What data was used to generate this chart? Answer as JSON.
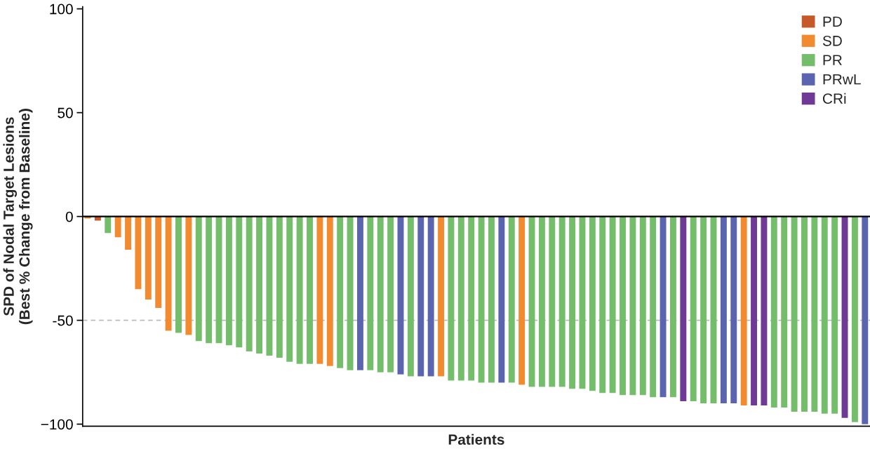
{
  "chart_data": {
    "type": "bar",
    "xlabel": "Patients",
    "ylabel": "SPD of Nodal Target Lesions\n(Best % Change from Baseline)",
    "categories": [
      null,
      null,
      null,
      null,
      null,
      null,
      null,
      null,
      null,
      null,
      null,
      null,
      null,
      null,
      null,
      null,
      null,
      null,
      null,
      null,
      null,
      null,
      null,
      null,
      null,
      null,
      null,
      null,
      null,
      null,
      null,
      null,
      null,
      null,
      null,
      null,
      null,
      null,
      null,
      null,
      null,
      null,
      null,
      null,
      null,
      null,
      null,
      null,
      null,
      null,
      null,
      null,
      null,
      null,
      null,
      null,
      null,
      null,
      null,
      null,
      null,
      null,
      null,
      null,
      null,
      null,
      null,
      null,
      null,
      null,
      null,
      null,
      null,
      null,
      null,
      null,
      null,
      null
    ],
    "series": [
      {
        "name": "PD",
        "color": "#c55a28",
        "values": [
          null,
          -2,
          null,
          null,
          null,
          null,
          null,
          null,
          null,
          null,
          null,
          null,
          null,
          null,
          null,
          null,
          null,
          null,
          null,
          null,
          null,
          null,
          null,
          null,
          null,
          null,
          null,
          null,
          null,
          null,
          null,
          null,
          null,
          null,
          null,
          null,
          null,
          null,
          null,
          null,
          null,
          null,
          null,
          null,
          null,
          null,
          null,
          null,
          null,
          null,
          null,
          null,
          null,
          null,
          null,
          null,
          null,
          null,
          null,
          null,
          null,
          null,
          null,
          null,
          null,
          null,
          null,
          null,
          null,
          null,
          null,
          null,
          null,
          null,
          null,
          null,
          null,
          null
        ]
      },
      {
        "name": "SD",
        "color": "#f28b30",
        "values": [
          -1,
          null,
          null,
          -10,
          -16,
          -35,
          -40,
          -44,
          -55,
          null,
          -57,
          null,
          null,
          null,
          null,
          null,
          null,
          null,
          null,
          null,
          null,
          null,
          null,
          -71,
          -72,
          null,
          null,
          null,
          null,
          null,
          null,
          null,
          null,
          null,
          null,
          -77,
          null,
          null,
          null,
          null,
          null,
          null,
          null,
          -81,
          null,
          null,
          null,
          null,
          null,
          null,
          null,
          null,
          null,
          null,
          null,
          null,
          null,
          null,
          null,
          null,
          null,
          null,
          null,
          null,
          null,
          -91,
          null,
          null,
          null,
          null,
          null,
          null,
          null,
          null,
          null,
          null,
          null,
          null
        ]
      },
      {
        "name": "PR",
        "color": "#74bd6a",
        "values": [
          null,
          null,
          -8,
          null,
          null,
          null,
          null,
          null,
          null,
          -56,
          null,
          -60,
          -61,
          -61,
          -62,
          -63,
          -65,
          -66,
          -67,
          -68,
          -70,
          -71,
          -71,
          null,
          null,
          -73,
          -74,
          null,
          -74,
          -75,
          -75,
          null,
          -77,
          null,
          null,
          null,
          -79,
          -79,
          -79,
          -80,
          -80,
          null,
          -80,
          null,
          -82,
          -82,
          -82,
          -82,
          -83,
          -83,
          -84,
          -85,
          -85,
          -86,
          -86,
          -86,
          -87,
          null,
          -87,
          null,
          -89,
          -90,
          -90,
          null,
          null,
          null,
          null,
          null,
          -92,
          -92,
          -94,
          -94,
          -94,
          -95,
          -95,
          null,
          -99,
          null
        ]
      },
      {
        "name": "PRwL",
        "color": "#5b64ae",
        "values": [
          null,
          null,
          null,
          null,
          null,
          null,
          null,
          null,
          null,
          null,
          null,
          null,
          null,
          null,
          null,
          null,
          null,
          null,
          null,
          null,
          null,
          null,
          null,
          null,
          null,
          null,
          null,
          -74,
          null,
          null,
          null,
          -76,
          null,
          -77,
          -77,
          null,
          null,
          null,
          null,
          null,
          null,
          -80,
          null,
          null,
          null,
          null,
          null,
          null,
          null,
          null,
          null,
          null,
          null,
          null,
          null,
          null,
          null,
          -87,
          null,
          null,
          null,
          null,
          null,
          -90,
          -90,
          null,
          null,
          null,
          null,
          null,
          null,
          null,
          null,
          null,
          null,
          null,
          null,
          -100
        ]
      },
      {
        "name": "CRi",
        "color": "#6f3996",
        "values": [
          null,
          null,
          null,
          null,
          null,
          null,
          null,
          null,
          null,
          null,
          null,
          null,
          null,
          null,
          null,
          null,
          null,
          null,
          null,
          null,
          null,
          null,
          null,
          null,
          null,
          null,
          null,
          null,
          null,
          null,
          null,
          null,
          null,
          null,
          null,
          null,
          null,
          null,
          null,
          null,
          null,
          null,
          null,
          null,
          null,
          null,
          null,
          null,
          null,
          null,
          null,
          null,
          null,
          null,
          null,
          null,
          null,
          null,
          null,
          -89,
          null,
          null,
          null,
          null,
          null,
          null,
          -91,
          -91,
          null,
          null,
          null,
          null,
          null,
          null,
          null,
          -97,
          null,
          null
        ]
      }
    ],
    "ylim": [
      -101,
      101
    ],
    "yticks": [
      100,
      50,
      0,
      -50,
      {
        "value": -100,
        "label": "−100"
      }
    ],
    "ref_lines": [
      {
        "axis": "y",
        "value": 0,
        "color": "#000000",
        "line_style": "solid"
      },
      {
        "axis": "y",
        "value": -50,
        "color": "#bbbbbb",
        "line_style": "dashed"
      }
    ],
    "tick_labels": "y",
    "grid": false,
    "legend": "top right"
  }
}
